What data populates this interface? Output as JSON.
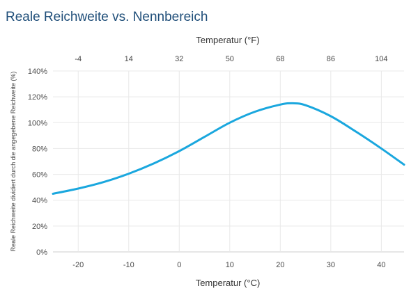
{
  "chart_data": {
    "type": "line",
    "title": "Reale Reichweite vs. Nennbereich",
    "xlabel": "Temperatur (°C)",
    "x2label": "Temperatur (°F)",
    "ylabel": "Reale Reichweite dividiert durch die angegebene Reichweite (%)",
    "xlim": [
      -25,
      44.5
    ],
    "ylim": [
      0,
      140
    ],
    "x_ticks": [
      -20,
      -10,
      0,
      10,
      20,
      30,
      40
    ],
    "x2_ticks": [
      -4,
      14,
      32,
      50,
      68,
      86,
      104
    ],
    "y_ticks": [
      0,
      20,
      40,
      60,
      80,
      100,
      120,
      140
    ],
    "y_tick_suffix": "%",
    "grid": true,
    "series": [
      {
        "color": "#1aa7de",
        "x": [
          -25,
          -20,
          -15,
          -10,
          -5,
          0,
          5,
          10,
          15,
          20,
          22.5,
          25,
          30,
          35,
          40,
          44.5
        ],
        "y": [
          45,
          49,
          54,
          60.5,
          68.5,
          78,
          89,
          100,
          108.5,
          114,
          115,
          113.5,
          105,
          93,
          80,
          67.5
        ]
      }
    ]
  },
  "colors": {
    "title": "#1f4e79",
    "axis_text": "#4a4a4a",
    "grid": "#e8e8e8",
    "axis_line": "#cccccc"
  }
}
